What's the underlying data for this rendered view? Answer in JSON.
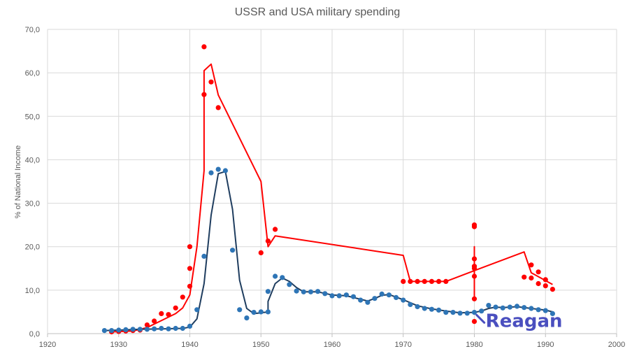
{
  "chart_data": {
    "type": "scatter",
    "title": "USSR and USA military spending",
    "xlabel": "",
    "ylabel": "% of National Income",
    "xlim": [
      1920,
      2000
    ],
    "ylim": [
      0,
      70
    ],
    "x_ticks": [
      "1920",
      "1930",
      "1940",
      "1950",
      "1960",
      "1970",
      "1980",
      "1990",
      "2000"
    ],
    "y_ticks": [
      "0,0",
      "10,0",
      "20,0",
      "30,0",
      "40,0",
      "50,0",
      "60,0",
      "70,0"
    ],
    "grid": true,
    "legend": "none",
    "annotation": {
      "text": "Reagan",
      "x": 1981,
      "y": 3,
      "color": "#4a4fbf"
    },
    "series": [
      {
        "color": "#ff0000",
        "points": [
          [
            1929,
            0.4
          ],
          [
            1930,
            0.5
          ],
          [
            1931,
            0.6
          ],
          [
            1932,
            0.7
          ],
          [
            1933,
            0.8
          ],
          [
            1934,
            2.0
          ],
          [
            1935,
            2.9
          ],
          [
            1936,
            4.6
          ],
          [
            1937,
            4.4
          ],
          [
            1938,
            5.9
          ],
          [
            1939,
            8.4
          ],
          [
            1940,
            20.0
          ],
          [
            1940,
            15.0
          ],
          [
            1940,
            10.9
          ],
          [
            1942,
            66.0
          ],
          [
            1942,
            55.0
          ],
          [
            1943,
            57.9
          ],
          [
            1944,
            52.0
          ],
          [
            1950,
            18.6
          ],
          [
            1951,
            21.3
          ],
          [
            1952,
            24.0
          ],
          [
            1970,
            12.0
          ],
          [
            1971,
            12.0
          ],
          [
            1972,
            12.0
          ],
          [
            1973,
            12.0
          ],
          [
            1974,
            12.0
          ],
          [
            1975,
            12.0
          ],
          [
            1976,
            12.0
          ],
          [
            1980,
            25.0
          ],
          [
            1980,
            24.6
          ],
          [
            1980,
            17.2
          ],
          [
            1980,
            15.5
          ],
          [
            1980,
            15.0
          ],
          [
            1980,
            13.2
          ],
          [
            1980,
            8.0
          ],
          [
            1980,
            2.8
          ],
          [
            1987,
            13.0
          ],
          [
            1988,
            15.8
          ],
          [
            1988,
            12.8
          ],
          [
            1989,
            14.2
          ],
          [
            1989,
            11.5
          ],
          [
            1990,
            12.4
          ],
          [
            1990,
            11.0
          ],
          [
            1991,
            10.2
          ]
        ],
        "trend": [
          [
            1929,
            0.4
          ],
          [
            1932,
            0.6
          ],
          [
            1934,
            1.4
          ],
          [
            1936,
            3.0
          ],
          [
            1938,
            4.6
          ],
          [
            1939,
            5.9
          ],
          [
            1940,
            8.9
          ],
          [
            1941,
            20.0
          ],
          [
            1942,
            37.5
          ],
          [
            1942,
            60.5
          ],
          [
            1943,
            62.0
          ],
          [
            1944,
            54.9
          ],
          [
            1950,
            35.0
          ],
          [
            1951,
            20.0
          ],
          [
            1952,
            22.5
          ],
          [
            1970,
            18.0
          ],
          [
            1971,
            12.0
          ],
          [
            1976,
            12.0
          ],
          [
            1980,
            14.5
          ],
          [
            1980,
            20.0
          ],
          [
            1980,
            8.0
          ],
          [
            1980,
            14.5
          ],
          [
            1987,
            18.8
          ],
          [
            1988,
            14.0
          ],
          [
            1991,
            11.3
          ]
        ]
      },
      {
        "color": "#2e75b6",
        "trendColor": "#1f3d5f",
        "points": [
          [
            1928,
            0.7
          ],
          [
            1929,
            0.7
          ],
          [
            1930,
            0.8
          ],
          [
            1931,
            0.9
          ],
          [
            1932,
            1.0
          ],
          [
            1933,
            1.0
          ],
          [
            1934,
            1.0
          ],
          [
            1935,
            1.1
          ],
          [
            1936,
            1.2
          ],
          [
            1937,
            1.1
          ],
          [
            1938,
            1.2
          ],
          [
            1939,
            1.2
          ],
          [
            1940,
            1.7
          ],
          [
            1941,
            5.5
          ],
          [
            1942,
            17.8
          ],
          [
            1943,
            37.0
          ],
          [
            1944,
            37.8
          ],
          [
            1945,
            37.5
          ],
          [
            1946,
            19.2
          ],
          [
            1947,
            5.5
          ],
          [
            1948,
            3.6
          ],
          [
            1949,
            4.9
          ],
          [
            1950,
            5.0
          ],
          [
            1951,
            9.7
          ],
          [
            1951,
            5.0
          ],
          [
            1952,
            13.2
          ],
          [
            1953,
            12.9
          ],
          [
            1954,
            11.3
          ],
          [
            1955,
            9.8
          ],
          [
            1956,
            9.6
          ],
          [
            1957,
            9.6
          ],
          [
            1958,
            9.7
          ],
          [
            1959,
            9.2
          ],
          [
            1960,
            8.7
          ],
          [
            1961,
            8.7
          ],
          [
            1962,
            8.9
          ],
          [
            1963,
            8.5
          ],
          [
            1964,
            7.7
          ],
          [
            1965,
            7.2
          ],
          [
            1966,
            8.1
          ],
          [
            1967,
            9.1
          ],
          [
            1968,
            8.9
          ],
          [
            1969,
            8.3
          ],
          [
            1970,
            7.7
          ],
          [
            1971,
            6.7
          ],
          [
            1972,
            6.2
          ],
          [
            1973,
            5.8
          ],
          [
            1974,
            5.6
          ],
          [
            1975,
            5.4
          ],
          [
            1976,
            4.9
          ],
          [
            1977,
            4.9
          ],
          [
            1978,
            4.7
          ],
          [
            1979,
            4.7
          ],
          [
            1980,
            4.9
          ],
          [
            1981,
            5.2
          ],
          [
            1982,
            6.5
          ],
          [
            1983,
            6.1
          ],
          [
            1984,
            5.9
          ],
          [
            1985,
            6.1
          ],
          [
            1986,
            6.3
          ],
          [
            1987,
            6.0
          ],
          [
            1988,
            5.8
          ],
          [
            1989,
            5.5
          ],
          [
            1990,
            5.3
          ],
          [
            1991,
            4.6
          ]
        ],
        "trend": [
          [
            1928,
            0.7
          ],
          [
            1930,
            0.8
          ],
          [
            1933,
            1.0
          ],
          [
            1936,
            1.1
          ],
          [
            1939,
            1.2
          ],
          [
            1940,
            1.5
          ],
          [
            1941,
            3.4
          ],
          [
            1942,
            11.5
          ],
          [
            1943,
            27.3
          ],
          [
            1944,
            36.8
          ],
          [
            1945,
            37.3
          ],
          [
            1946,
            28.6
          ],
          [
            1947,
            12.3
          ],
          [
            1948,
            5.8
          ],
          [
            1949,
            4.6
          ],
          [
            1950,
            4.8
          ],
          [
            1951,
            5.0
          ],
          [
            1951,
            7.4
          ],
          [
            1952,
            11.5
          ],
          [
            1953,
            12.8
          ],
          [
            1954,
            12.0
          ],
          [
            1955,
            10.6
          ],
          [
            1956,
            9.6
          ],
          [
            1958,
            9.6
          ],
          [
            1960,
            8.9
          ],
          [
            1962,
            8.7
          ],
          [
            1964,
            7.9
          ],
          [
            1965,
            7.5
          ],
          [
            1966,
            8.1
          ],
          [
            1967,
            8.8
          ],
          [
            1968,
            9.0
          ],
          [
            1969,
            8.4
          ],
          [
            1970,
            7.8
          ],
          [
            1972,
            6.4
          ],
          [
            1974,
            5.7
          ],
          [
            1976,
            5.2
          ],
          [
            1978,
            4.8
          ],
          [
            1980,
            4.9
          ],
          [
            1981,
            5.2
          ],
          [
            1982,
            5.8
          ],
          [
            1983,
            6.1
          ],
          [
            1984,
            6.0
          ],
          [
            1986,
            6.2
          ],
          [
            1988,
            5.8
          ],
          [
            1990,
            5.4
          ],
          [
            1991,
            5.0
          ]
        ]
      }
    ]
  }
}
